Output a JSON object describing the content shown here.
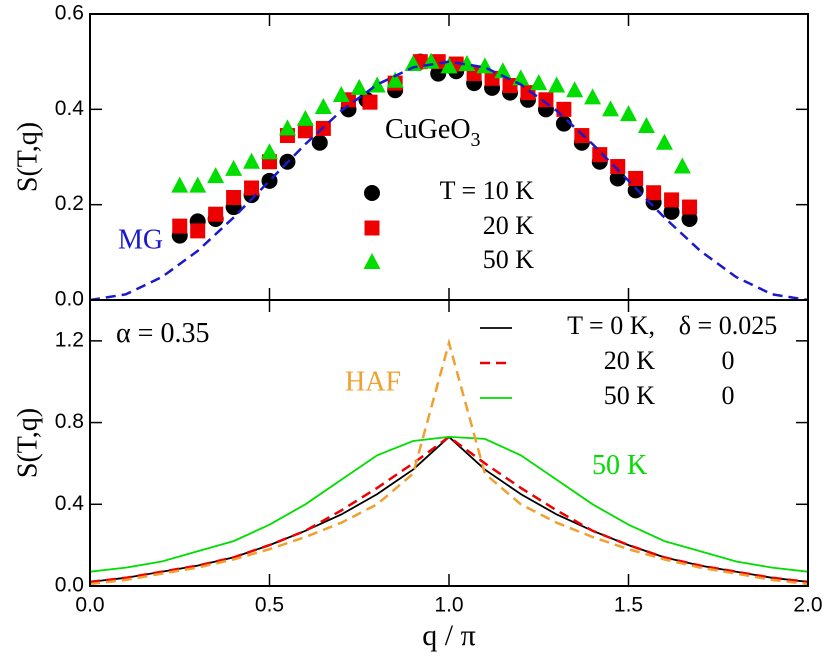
{
  "chart_data": [
    {
      "type": "scatter",
      "ylabel": "S(T,q)",
      "xlim": [
        0,
        2
      ],
      "ylim": [
        0,
        0.6
      ],
      "yticks": [
        {
          "value": 0,
          "label": "0.0"
        },
        0.2,
        0.4,
        0.6
      ],
      "annotations": [
        {
          "text": "CuGeO",
          "sub": "3",
          "color": "#000000"
        }
      ],
      "series": [
        {
          "name": "T = 10 K",
          "color": "#000000",
          "marker": "circle",
          "x": [
            0.25,
            0.3,
            0.35,
            0.4,
            0.45,
            0.5,
            0.55,
            0.64,
            0.72,
            0.77,
            0.85,
            0.92,
            0.97,
            1.02,
            1.07,
            1.12,
            1.17,
            1.22,
            1.27,
            1.32,
            1.37,
            1.42,
            1.47,
            1.52,
            1.57,
            1.62,
            1.67
          ],
          "values": [
            0.135,
            0.165,
            0.17,
            0.195,
            0.22,
            0.25,
            0.29,
            0.33,
            0.4,
            0.42,
            0.44,
            0.5,
            0.475,
            0.48,
            0.455,
            0.445,
            0.435,
            0.42,
            0.4,
            0.37,
            0.33,
            0.29,
            0.255,
            0.23,
            0.205,
            0.185,
            0.17
          ]
        },
        {
          "name": "20 K",
          "color": "#ee0000",
          "marker": "square",
          "x": [
            0.25,
            0.3,
            0.35,
            0.4,
            0.45,
            0.5,
            0.55,
            0.6,
            0.65,
            0.72,
            0.78,
            0.85,
            0.92,
            0.97,
            1.02,
            1.07,
            1.12,
            1.17,
            1.22,
            1.27,
            1.32,
            1.37,
            1.42,
            1.47,
            1.52,
            1.57,
            1.62,
            1.67
          ],
          "values": [
            0.155,
            0.145,
            0.18,
            0.215,
            0.235,
            0.29,
            0.345,
            0.355,
            0.36,
            0.42,
            0.415,
            0.455,
            0.5,
            0.5,
            0.495,
            0.475,
            0.465,
            0.45,
            0.435,
            0.42,
            0.4,
            0.345,
            0.305,
            0.28,
            0.255,
            0.225,
            0.21,
            0.195
          ]
        },
        {
          "name": "50 K",
          "color": "#00dd00",
          "marker": "triangle",
          "x": [
            0.25,
            0.3,
            0.35,
            0.4,
            0.45,
            0.5,
            0.55,
            0.6,
            0.65,
            0.7,
            0.75,
            0.8,
            0.85,
            0.9,
            0.95,
            1.0,
            1.05,
            1.1,
            1.15,
            1.2,
            1.25,
            1.3,
            1.35,
            1.4,
            1.45,
            1.5,
            1.55,
            1.6,
            1.65
          ],
          "values": [
            0.24,
            0.24,
            0.26,
            0.275,
            0.29,
            0.31,
            0.36,
            0.38,
            0.405,
            0.43,
            0.445,
            0.45,
            0.46,
            0.495,
            0.5,
            0.49,
            0.495,
            0.49,
            0.48,
            0.465,
            0.455,
            0.45,
            0.44,
            0.425,
            0.4,
            0.39,
            0.365,
            0.33,
            0.28
          ]
        },
        {
          "name": "MG",
          "color": "#1a1acc",
          "dash": true,
          "x": [
            0,
            0.1,
            0.2,
            0.3,
            0.4,
            0.5,
            0.6,
            0.7,
            0.8,
            0.9,
            1.0,
            1.1,
            1.2,
            1.3,
            1.4,
            1.5,
            1.6,
            1.7,
            1.8,
            1.9,
            2.0
          ],
          "values": [
            0,
            0.012,
            0.048,
            0.103,
            0.173,
            0.25,
            0.327,
            0.397,
            0.452,
            0.488,
            0.5,
            0.488,
            0.452,
            0.397,
            0.327,
            0.25,
            0.173,
            0.103,
            0.048,
            0.012,
            0
          ]
        }
      ]
    },
    {
      "type": "line",
      "ylabel": "S(T,q)",
      "xlabel": "q / π",
      "xlim": [
        0,
        2
      ],
      "ylim": [
        0,
        1.4
      ],
      "xticks": [
        {
          "value": 0,
          "label": "0.0"
        },
        0.5,
        {
          "value": 1,
          "label": "1.0"
        },
        1.5,
        {
          "value": 2,
          "label": "2.0"
        }
      ],
      "yticks": [
        {
          "value": 0,
          "label": "0.0"
        },
        0.4,
        0.8,
        1.2
      ],
      "annotations": [
        {
          "text": "α = 0.35",
          "color": "#000000"
        },
        {
          "text": "50 K",
          "color": "#00dd00"
        }
      ],
      "x": [
        0,
        0.1,
        0.2,
        0.3,
        0.4,
        0.5,
        0.6,
        0.7,
        0.8,
        0.9,
        1.0,
        1.1,
        1.2,
        1.3,
        1.4,
        1.5,
        1.6,
        1.7,
        1.8,
        1.9,
        2.0
      ],
      "series": [
        {
          "name": "T = 0 K,",
          "delta": "δ = 0.025",
          "color": "#000000",
          "dash": false,
          "values": [
            0.02,
            0.04,
            0.07,
            0.1,
            0.14,
            0.2,
            0.27,
            0.35,
            0.45,
            0.57,
            0.73,
            0.57,
            0.45,
            0.35,
            0.27,
            0.2,
            0.14,
            0.1,
            0.07,
            0.04,
            0.02
          ]
        },
        {
          "name": "20 K",
          "delta": "0",
          "color": "#ee0000",
          "dash": true,
          "values": [
            0.02,
            0.04,
            0.07,
            0.1,
            0.14,
            0.2,
            0.27,
            0.37,
            0.48,
            0.6,
            0.73,
            0.6,
            0.48,
            0.37,
            0.27,
            0.2,
            0.14,
            0.1,
            0.07,
            0.04,
            0.02
          ]
        },
        {
          "name": "50 K",
          "delta": "0",
          "color": "#00dd00",
          "dash": false,
          "values": [
            0.07,
            0.09,
            0.12,
            0.17,
            0.22,
            0.3,
            0.4,
            0.52,
            0.64,
            0.71,
            0.73,
            0.72,
            0.64,
            0.52,
            0.4,
            0.3,
            0.22,
            0.17,
            0.12,
            0.09,
            0.07
          ]
        },
        {
          "name": "HAF",
          "color": "#f0a030",
          "dash": true,
          "values": [
            0.01,
            0.03,
            0.06,
            0.09,
            0.13,
            0.18,
            0.24,
            0.31,
            0.4,
            0.55,
            1.19,
            0.55,
            0.4,
            0.31,
            0.24,
            0.18,
            0.13,
            0.09,
            0.06,
            0.03,
            0.01
          ]
        }
      ]
    }
  ]
}
